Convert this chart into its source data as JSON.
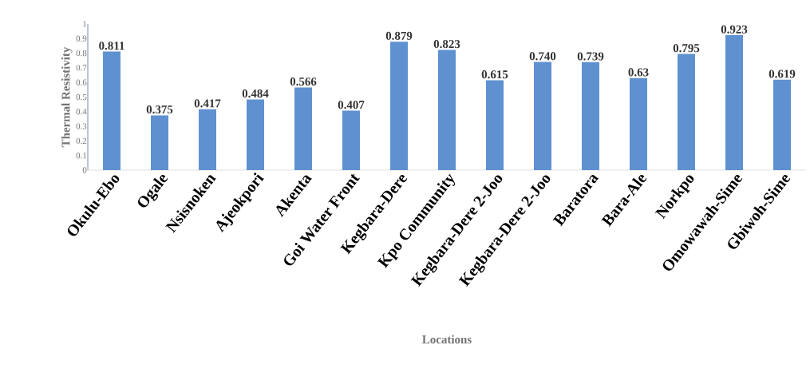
{
  "chart_data": {
    "type": "bar",
    "categories": [
      "Okulu-Ebo",
      "Ogale",
      "Nsisnoken",
      "Ajeokpori",
      "Akenta",
      "Goi Water Front",
      "Kegbara-Dere",
      "Kpo Community",
      "Kegbara-Dere 2-Joo",
      "Kegbara-Dere 2-Joo",
      "Baratora",
      "Bara-Ale",
      "Norkpo",
      "Omowawah-Sime",
      "Gbiwoh-Sime"
    ],
    "values": [
      0.811,
      0.375,
      0.417,
      0.484,
      0.566,
      0.407,
      0.879,
      0.823,
      0.615,
      0.74,
      0.739,
      0.63,
      0.795,
      0.923,
      0.619
    ],
    "value_labels": [
      "0.811",
      "0.375",
      "0.417",
      "0.484",
      "0.566",
      "0.407",
      "0.879",
      "0.823",
      "0.615",
      "0.740",
      "0.739",
      "0.63",
      "0.795",
      "0.923",
      "0.619"
    ],
    "color": "#5f91d1",
    "xlabel": "Locations",
    "ylabel": "Thermal Resistivity",
    "ylim": [
      0,
      1
    ],
    "yticks": [
      0,
      0.1,
      0.2,
      0.3,
      0.4,
      0.5,
      0.6,
      0.7,
      0.8,
      0.9,
      1
    ],
    "grid": false
  }
}
